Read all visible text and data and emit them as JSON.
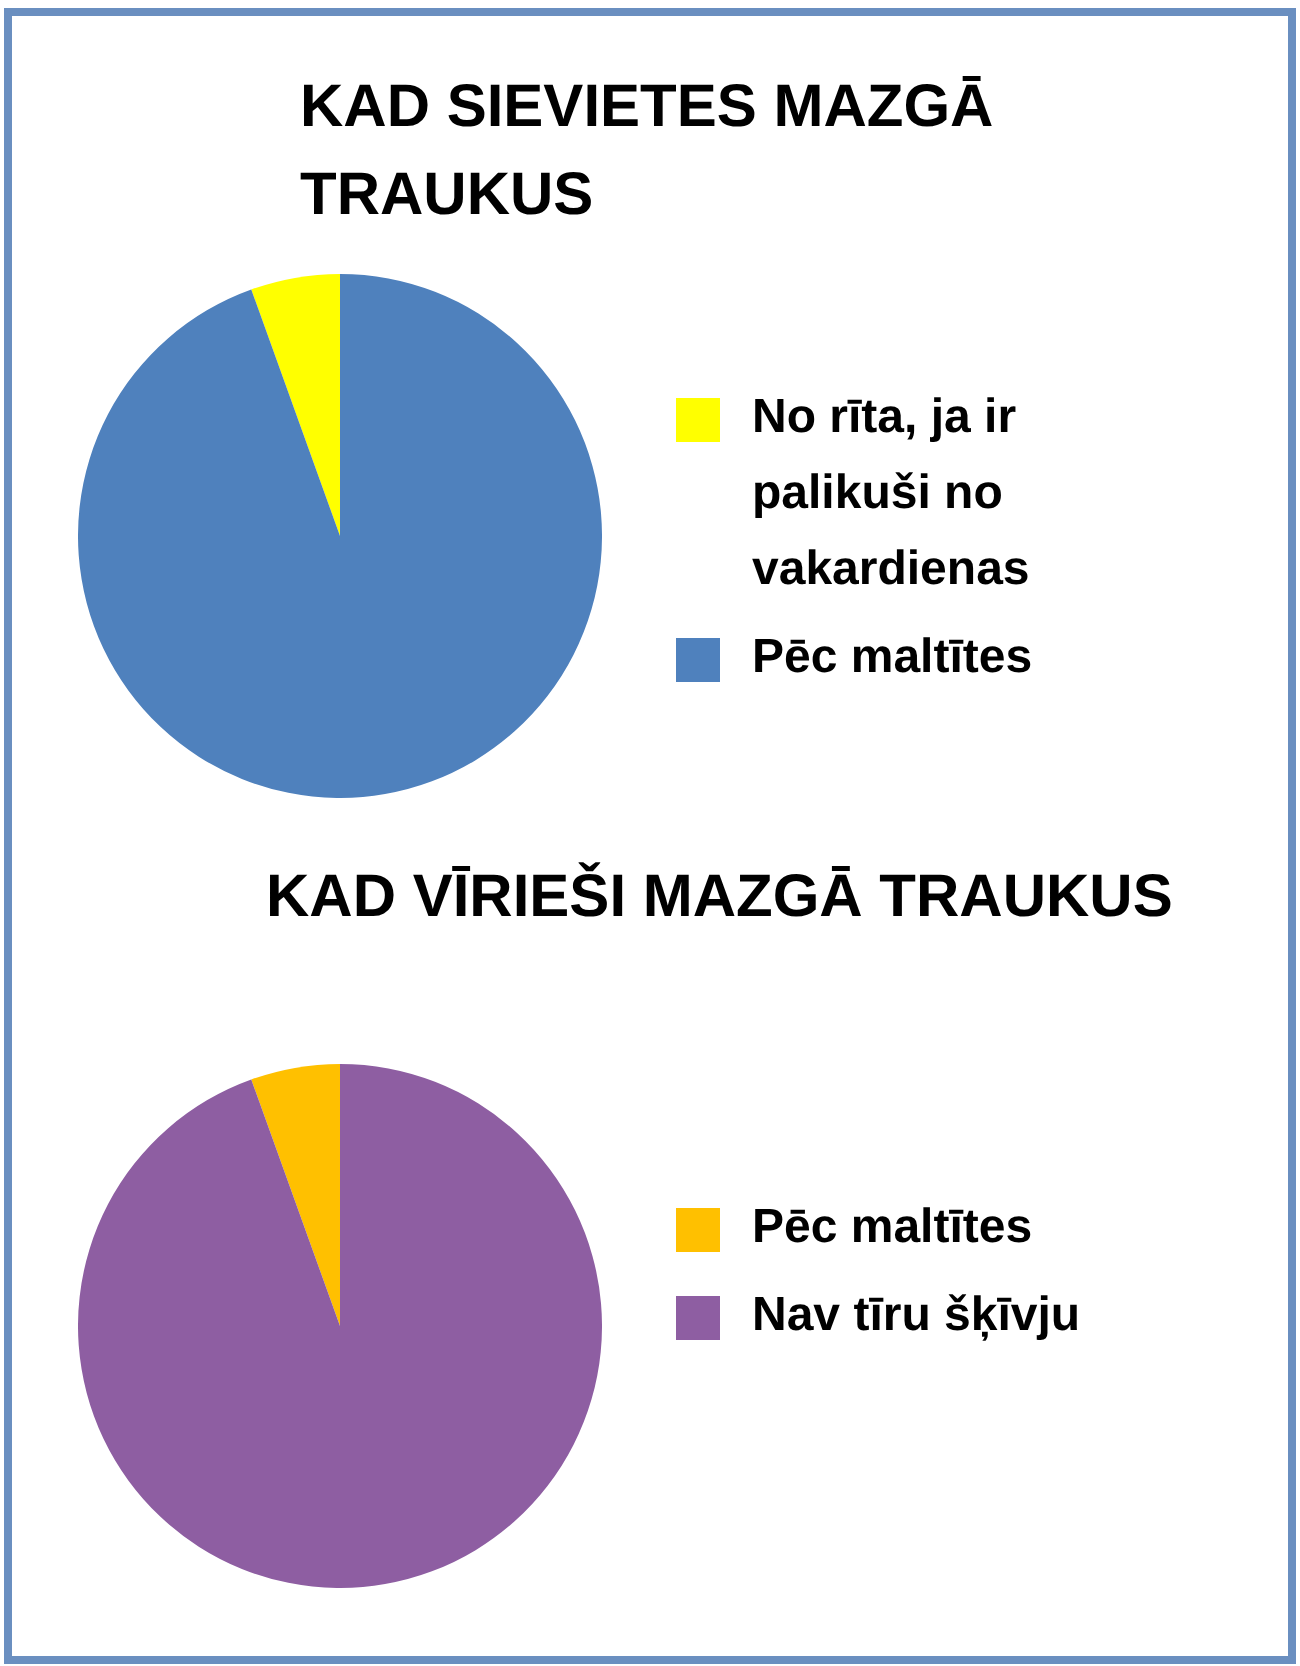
{
  "chart_data": [
    {
      "type": "pie",
      "title": "KAD SIEVIETES MAZGĀ TRAUKUS",
      "categories": [
        "No rīta, ja ir palikuši no vakardienas",
        "Pēc maltītes"
      ],
      "values": [
        5.5,
        94.5
      ],
      "colors": [
        "#ffff00",
        "#4f81bd"
      ],
      "legend": "right"
    },
    {
      "type": "pie",
      "title": "KAD VĪRIEŠI MAZGĀ TRAUKUS",
      "categories": [
        "Pēc maltītes",
        "Nav tīru šķīvju"
      ],
      "values": [
        5.5,
        94.5
      ],
      "colors": [
        "#ffc000",
        "#8e5ea2"
      ],
      "legend": "right"
    }
  ]
}
